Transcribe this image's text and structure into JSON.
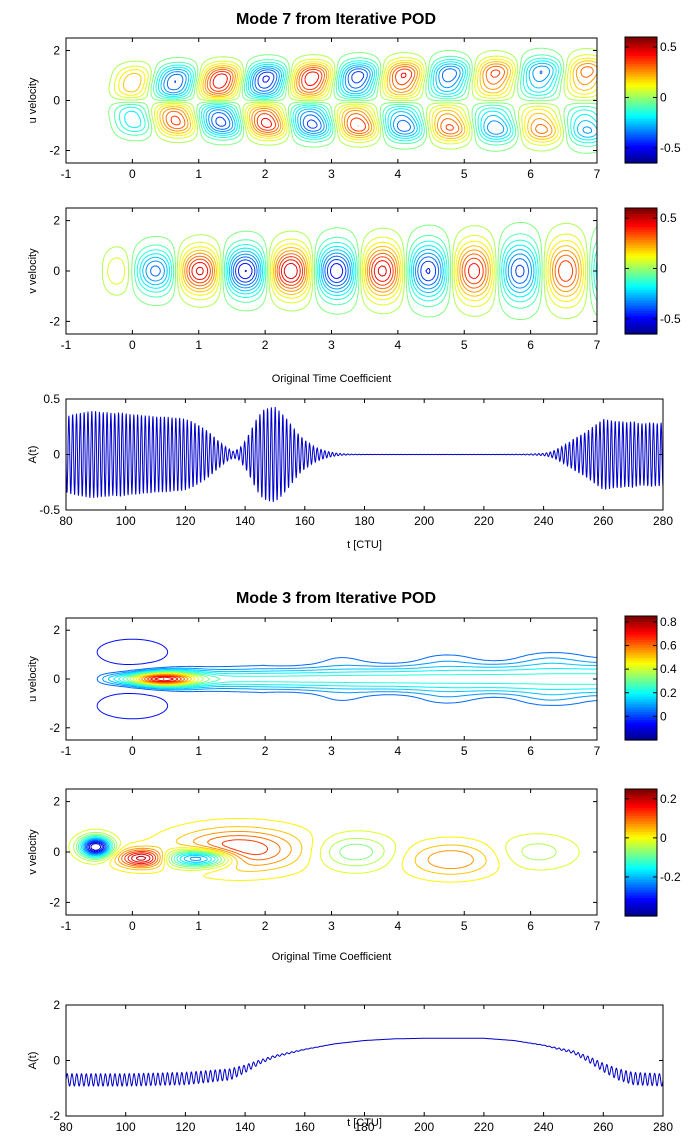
{
  "figure_title": "",
  "colors": {
    "line": "#0000cc",
    "frame": "#000000",
    "jet": [
      "#00008f",
      "#0000ff",
      "#0080ff",
      "#00ffff",
      "#80ff80",
      "#ffff00",
      "#ff8000",
      "#ff0000",
      "#800000"
    ]
  },
  "chart_data": [
    {
      "id": "m7u",
      "type": "contour",
      "group": "Mode 7 from Iterative POD",
      "title": "Mode 7 from Iterative POD",
      "xlabel": "",
      "ylabel": "u velocity",
      "xlim": [
        -1,
        7
      ],
      "ylim": [
        -2.5,
        2.5
      ],
      "xticks": [
        -1,
        0,
        1,
        2,
        3,
        4,
        5,
        6,
        7
      ],
      "yticks": [
        -2,
        0,
        2
      ],
      "colorbar": {
        "range": [
          -0.65,
          0.6
        ],
        "ticks": [
          0.5,
          0,
          -0.5
        ]
      },
      "field": {
        "kind": "wake",
        "x0": -0.5,
        "span": 1.0,
        "sigma": 0.42,
        "k": 4.55,
        "ph": 0.4,
        "anti": true,
        "growth": 1.1,
        "decay": 0.09,
        "amp": 0.6
      }
    },
    {
      "id": "m7v",
      "type": "contour",
      "group": "Mode 7 from Iterative POD",
      "title": "",
      "xlabel": "Original Time Coefficient",
      "ylabel": "v velocity",
      "xlim": [
        -1,
        7
      ],
      "ylim": [
        -2.5,
        2.5
      ],
      "xticks": [
        -1,
        0,
        1,
        2,
        3,
        4,
        5,
        6,
        7
      ],
      "yticks": [
        -2,
        0,
        2
      ],
      "colorbar": {
        "range": [
          -0.65,
          0.6
        ],
        "ticks": [
          0.5,
          0,
          -0.5
        ]
      },
      "field": {
        "kind": "wake",
        "x0": -0.5,
        "span": 0.6,
        "sigma": 0.55,
        "k": 4.55,
        "ph": 1.7,
        "anti": false,
        "growth": 1.1,
        "decay": 0.07,
        "amp": 0.6
      }
    },
    {
      "id": "m7a",
      "type": "line",
      "group": "Mode 7 from Iterative POD",
      "title": "",
      "xlabel": "t [CTU]",
      "ylabel": "A(t)",
      "xlim": [
        80,
        280
      ],
      "ylim": [
        -0.5,
        0.5
      ],
      "xticks": [
        80,
        100,
        120,
        140,
        160,
        180,
        200,
        220,
        240,
        260,
        280
      ],
      "yticks": [
        -0.5,
        0,
        0.5
      ],
      "series": [
        {
          "x": [
            80,
            82,
            84,
            86,
            88,
            90,
            92,
            94,
            96,
            98,
            100,
            102,
            104,
            106,
            108,
            110,
            112,
            114,
            116,
            118,
            120,
            122,
            124,
            126,
            128,
            130,
            132,
            134,
            136,
            138,
            140,
            142,
            144,
            146,
            148,
            150,
            152,
            154,
            156,
            158,
            160,
            162,
            164,
            166,
            168,
            170,
            172,
            174,
            176,
            178,
            180,
            185,
            190,
            195,
            200,
            205,
            210,
            215,
            220,
            225,
            230,
            235,
            240,
            242,
            244,
            246,
            248,
            250,
            252,
            254,
            256,
            258,
            260,
            262,
            264,
            266,
            268,
            270,
            272,
            274,
            276,
            278,
            280
          ],
          "envelope": [
            0.34,
            0.36,
            0.37,
            0.38,
            0.39,
            0.39,
            0.38,
            0.38,
            0.37,
            0.38,
            0.37,
            0.36,
            0.36,
            0.35,
            0.35,
            0.34,
            0.34,
            0.34,
            0.33,
            0.33,
            0.32,
            0.3,
            0.27,
            0.24,
            0.2,
            0.15,
            0.1,
            0.06,
            0.03,
            0.05,
            0.12,
            0.22,
            0.33,
            0.4,
            0.42,
            0.43,
            0.38,
            0.32,
            0.25,
            0.18,
            0.13,
            0.09,
            0.06,
            0.04,
            0.025,
            0.015,
            0.008,
            0.005,
            0.003,
            0.002,
            0.001,
            0.001,
            0.001,
            0.001,
            0.001,
            0.001,
            0.001,
            0.001,
            0.001,
            0.001,
            0.002,
            0.004,
            0.01,
            0.02,
            0.04,
            0.07,
            0.1,
            0.14,
            0.17,
            0.2,
            0.24,
            0.28,
            0.32,
            0.31,
            0.3,
            0.3,
            0.29,
            0.3,
            0.28,
            0.28,
            0.29,
            0.28,
            0.29
          ],
          "period": 1.28,
          "offset": [
            0,
            0,
            0
          ]
        }
      ]
    },
    {
      "id": "m3u",
      "type": "contour",
      "group": "Mode 3 from Iterative POD",
      "title": "Mode 3 from Iterative POD",
      "xlabel": "",
      "ylabel": "u velocity",
      "xlim": [
        -1,
        7
      ],
      "ylim": [
        -2.5,
        2.5
      ],
      "xticks": [
        -1,
        0,
        1,
        2,
        3,
        4,
        5,
        6,
        7
      ],
      "yticks": [
        -2,
        0,
        2
      ],
      "colorbar": {
        "range": [
          -0.2,
          0.85
        ],
        "ticks": [
          0.8,
          0.6,
          0.4,
          0.2,
          0
        ]
      },
      "field": {
        "kind": "jet",
        "amp": 0.85
      }
    },
    {
      "id": "m3v",
      "type": "contour",
      "group": "Mode 3 from Iterative POD",
      "title": "",
      "xlabel": "Original Time Coefficient",
      "ylabel": "v velocity",
      "xlim": [
        -1,
        7
      ],
      "ylim": [
        -2.5,
        2.5
      ],
      "xticks": [
        -1,
        0,
        1,
        2,
        3,
        4,
        5,
        6,
        7
      ],
      "yticks": [
        -2,
        0,
        2
      ],
      "colorbar": {
        "range": [
          -0.4,
          0.25
        ],
        "ticks": [
          0.2,
          0,
          -0.2
        ]
      },
      "field": {
        "kind": "dipole",
        "amp": 0.25
      }
    },
    {
      "id": "m3a",
      "type": "line",
      "group": "Mode 3 from Iterative POD",
      "title": "",
      "xlabel": "t [CTU]",
      "ylabel": "A(t)",
      "xlim": [
        80,
        280
      ],
      "ylim": [
        -2,
        2
      ],
      "xticks": [
        80,
        100,
        120,
        140,
        160,
        180,
        200,
        220,
        240,
        260,
        280
      ],
      "yticks": [
        -2,
        0,
        2
      ],
      "series": [
        {
          "x": [
            80,
            100,
            120,
            135,
            140,
            145,
            150,
            160,
            170,
            180,
            190,
            200,
            210,
            220,
            230,
            240,
            250,
            255,
            260,
            265,
            270,
            280
          ],
          "envelope": [
            0.22,
            0.22,
            0.22,
            0.2,
            0.14,
            0.07,
            0.04,
            0.01,
            0,
            0,
            0,
            0,
            0,
            0,
            0,
            0.01,
            0.05,
            0.1,
            0.15,
            0.2,
            0.22,
            0.22
          ],
          "period": 1.6,
          "offset": [
            -0.7,
            -0.7,
            -0.65,
            -0.5,
            -0.3,
            -0.05,
            0.15,
            0.4,
            0.6,
            0.72,
            0.78,
            0.8,
            0.8,
            0.8,
            0.72,
            0.55,
            0.3,
            0.05,
            -0.25,
            -0.5,
            -0.65,
            -0.7
          ]
        }
      ]
    }
  ]
}
